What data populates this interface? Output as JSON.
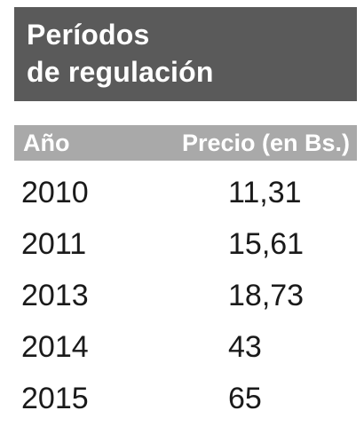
{
  "title": {
    "line1": "Períodos",
    "line2": "de regulación"
  },
  "table": {
    "headers": {
      "year": "Año",
      "price": "Precio (en Bs.)"
    },
    "rows": [
      {
        "year": "2010",
        "price": "11,31"
      },
      {
        "year": "2011",
        "price": "15,61"
      },
      {
        "year": "2013",
        "price": "18,73"
      },
      {
        "year": "2014",
        "price": "43"
      },
      {
        "year": "2015",
        "price": "65"
      }
    ]
  },
  "colors": {
    "title_background": "#5a5a5a",
    "header_background": "#a9a9a9",
    "text": "#1a1a1a"
  }
}
